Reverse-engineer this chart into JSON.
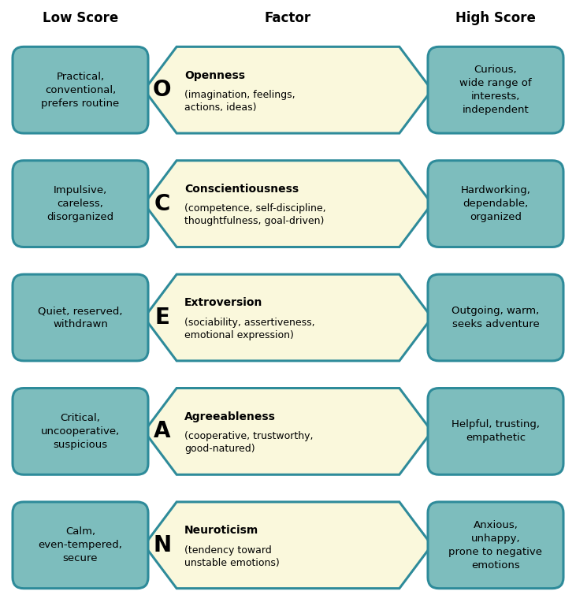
{
  "title_low": "Low Score",
  "title_factor": "Factor",
  "title_high": "High Score",
  "bg_color": "#ffffff",
  "arrow_fill": "#faf8dc",
  "arrow_edge": "#2e8b9a",
  "box_fill": "#7dbdbd",
  "box_edge": "#2e8b9a",
  "fig_w": 7.31,
  "fig_h": 7.69,
  "dpi": 100,
  "rows": [
    {
      "letter": "O",
      "name": "Openness",
      "desc": "(imagination, feelings,\nactions, ideas)",
      "low_text": "Practical,\nconventional,\nprefers routine",
      "high_text": "Curious,\nwide range of\ninterests,\nindependent"
    },
    {
      "letter": "C",
      "name": "Conscientiousness",
      "desc": "(competence, self-discipline,\nthoughtfulness, goal-driven)",
      "low_text": "Impulsive,\ncareless,\ndisorganized",
      "high_text": "Hardworking,\ndependable,\norganized"
    },
    {
      "letter": "E",
      "name": "Extroversion",
      "desc": "(sociability, assertiveness,\nemotional expression)",
      "low_text": "Quiet, reserved,\nwithdrawn",
      "high_text": "Outgoing, warm,\nseeks adventure"
    },
    {
      "letter": "A",
      "name": "Agreeableness",
      "desc": "(cooperative, trustworthy,\ngood-natured)",
      "low_text": "Critical,\nuncooperative,\nsuspicious",
      "high_text": "Helpful, trusting,\nempathetic"
    },
    {
      "letter": "N",
      "name": "Neuroticism",
      "desc": "(tendency toward\nunstable emotions)",
      "low_text": "Calm,\neven-tempered,\nsecure",
      "high_text": "Anxious,\nunhappy,\nprone to negative\nemotions"
    }
  ]
}
